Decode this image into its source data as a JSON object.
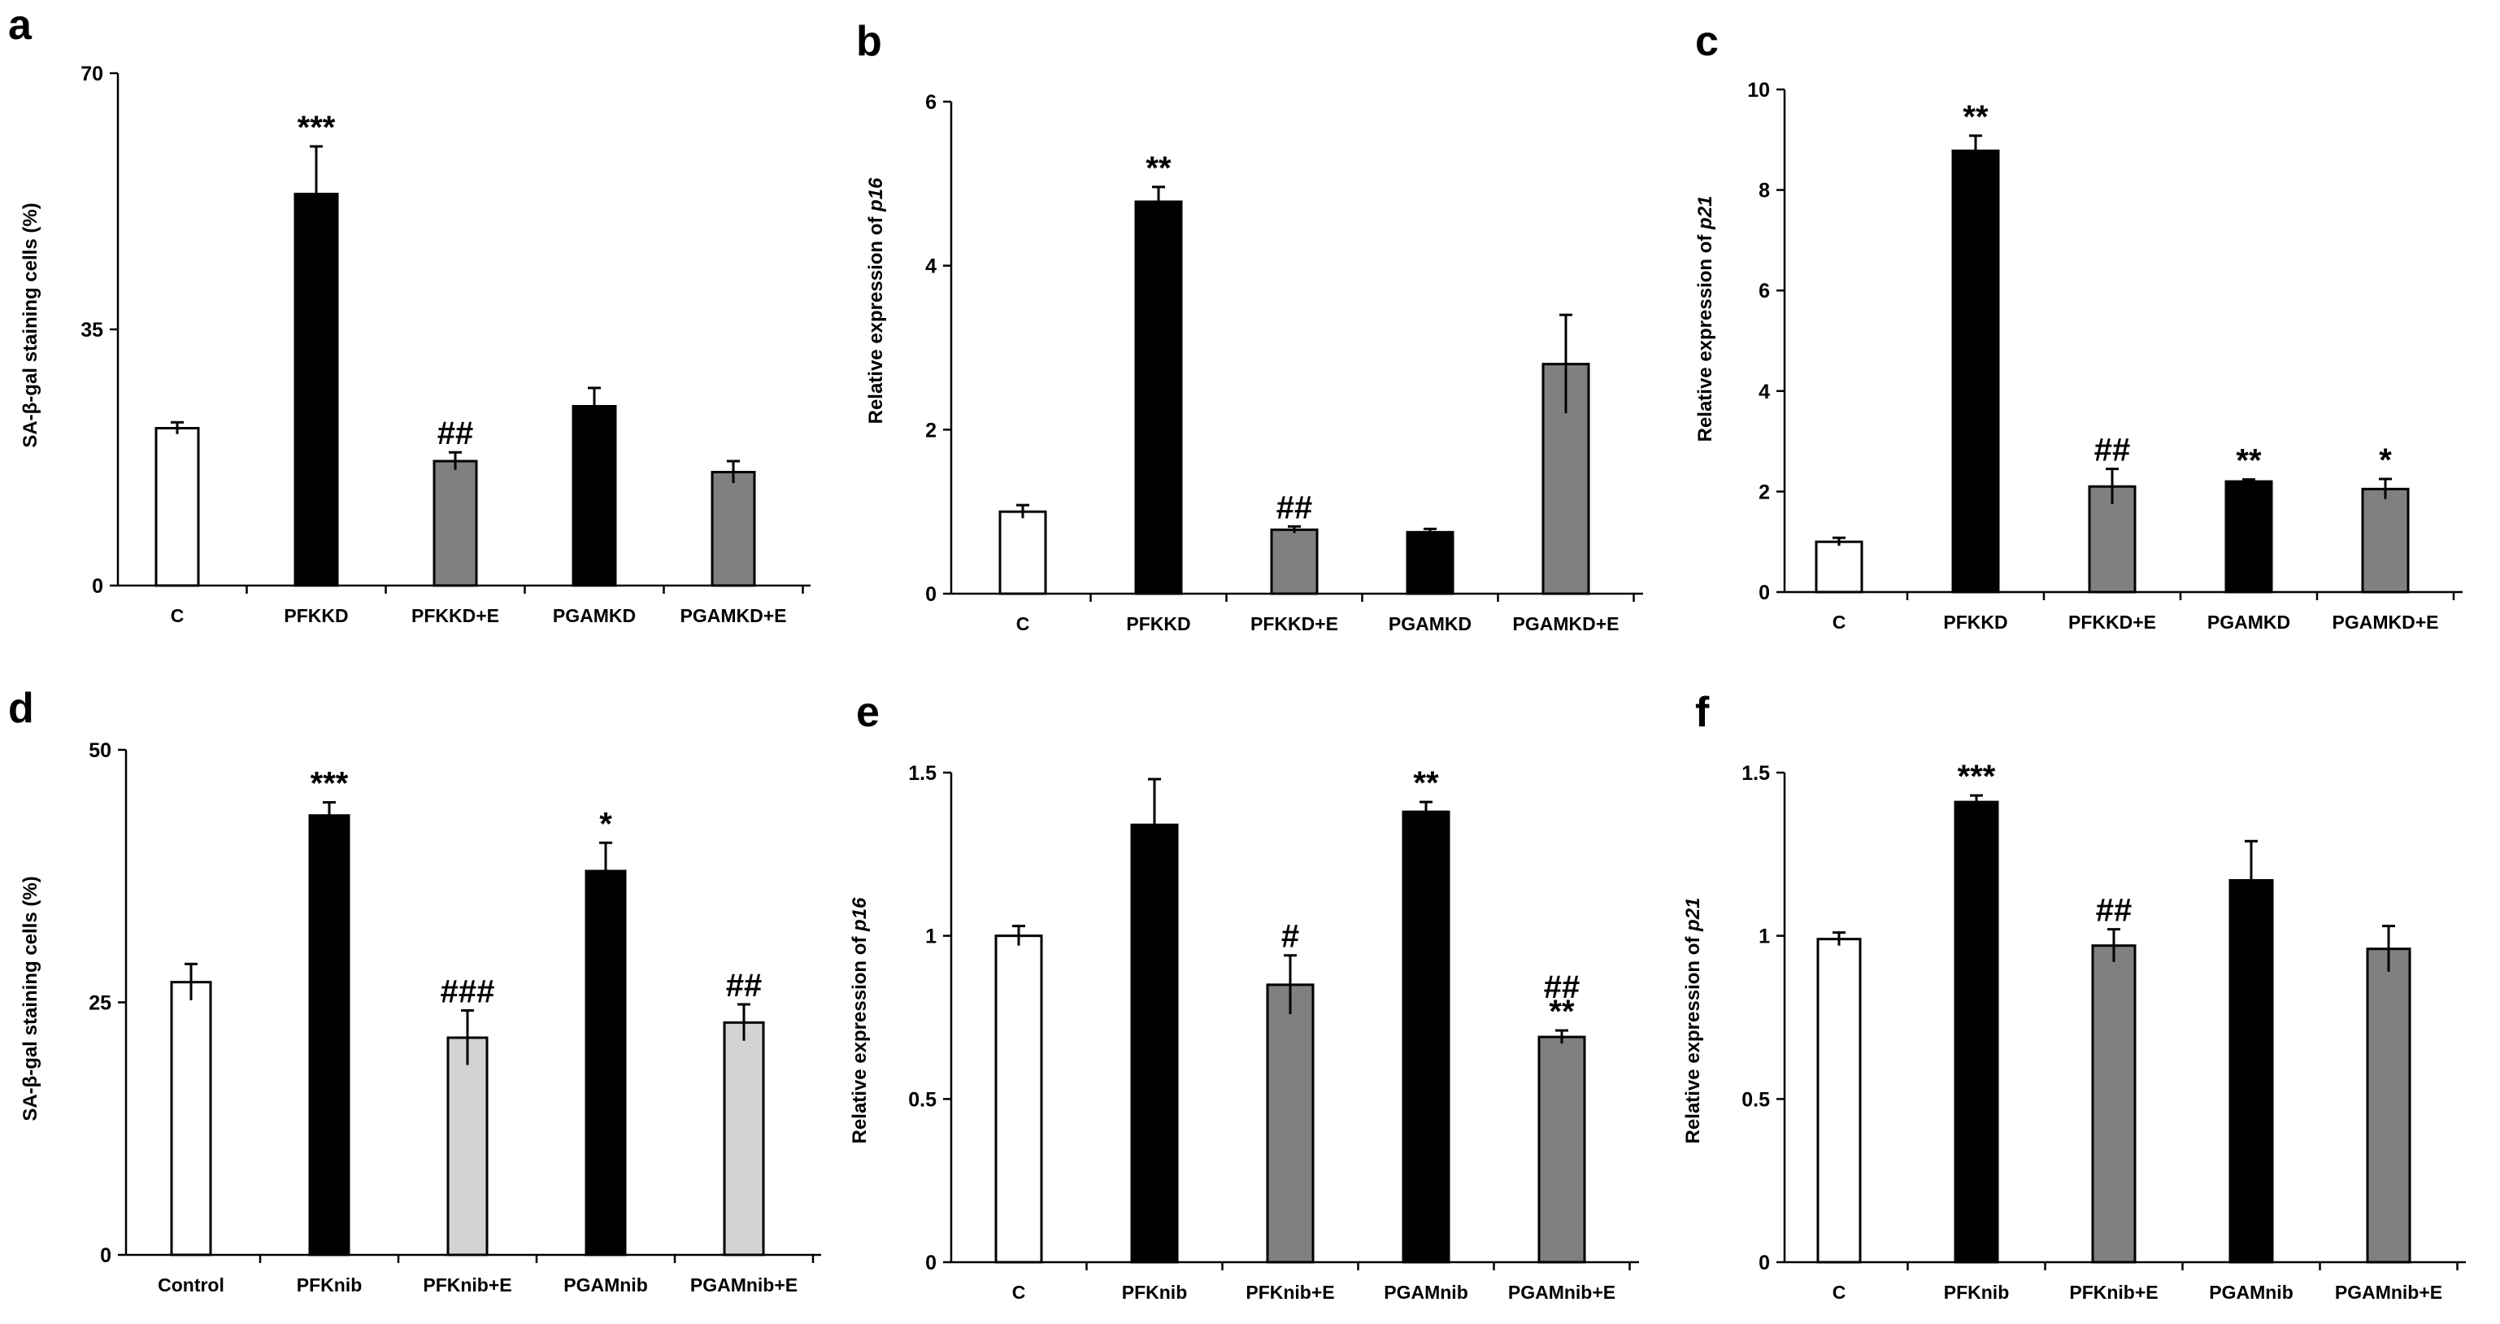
{
  "chart_data": [
    {
      "panel": "a",
      "type": "bar",
      "ylabel": "SA-β-gal staining cells (%)",
      "ylabel_italic": "",
      "ylim": [
        0,
        70
      ],
      "yticks": [
        0,
        35,
        70
      ],
      "ytick_labels": [
        "0",
        "35",
        "70"
      ],
      "categories": [
        "C",
        "PFKKD",
        "PFKKD+E",
        "PGAMKD",
        "PGAMKD+E"
      ],
      "values": [
        21.5,
        53.5,
        17,
        24.5,
        15.5
      ],
      "errors": [
        0.8,
        6.5,
        1.2,
        2.5,
        1.5
      ],
      "fills": [
        "#ffffff",
        "#000000",
        "#808080",
        "#000000",
        "#808080"
      ],
      "sig": [
        "",
        "***",
        "##",
        "",
        ""
      ]
    },
    {
      "panel": "b",
      "type": "bar",
      "ylabel": "Relative expression of ",
      "ylabel_italic": "p16",
      "ylim": [
        0,
        6
      ],
      "yticks": [
        0,
        2,
        4,
        6
      ],
      "ytick_labels": [
        "0",
        "2",
        "4",
        "6"
      ],
      "categories": [
        "C",
        "PFKKD",
        "PFKKD+E",
        "PGAMKD",
        "PGAMKD+E"
      ],
      "values": [
        1.0,
        4.78,
        0.78,
        0.75,
        2.8
      ],
      "errors": [
        0.08,
        0.18,
        0.04,
        0.04,
        0.6
      ],
      "fills": [
        "#ffffff",
        "#000000",
        "#808080",
        "#000000",
        "#808080"
      ],
      "sig": [
        "",
        "**",
        "##",
        "",
        ""
      ]
    },
    {
      "panel": "c",
      "type": "bar",
      "ylabel": "Relative expression of ",
      "ylabel_italic": "p21",
      "ylim": [
        0,
        10
      ],
      "yticks": [
        0,
        2,
        4,
        6,
        8,
        10
      ],
      "ytick_labels": [
        "0",
        "2",
        "4",
        "6",
        "8",
        "10"
      ],
      "categories": [
        "C",
        "PFKKD",
        "PFKKD+E",
        "PGAMKD",
        "PGAMKD+E"
      ],
      "values": [
        1.0,
        8.78,
        2.1,
        2.2,
        2.05
      ],
      "errors": [
        0.08,
        0.3,
        0.35,
        0.04,
        0.2
      ],
      "fills": [
        "#ffffff",
        "#000000",
        "#808080",
        "#000000",
        "#808080"
      ],
      "sig": [
        "",
        "**",
        "##",
        "**",
        "*"
      ]
    },
    {
      "panel": "d",
      "type": "bar",
      "ylabel": "SA-β-gal staining cells (%)",
      "ylabel_italic": "",
      "ylim": [
        0,
        50
      ],
      "yticks": [
        0,
        25,
        50
      ],
      "ytick_labels": [
        "0",
        "25",
        "50"
      ],
      "categories": [
        "Control",
        "PFKnib",
        "PFKnib+E",
        "PGAMnib",
        "PGAMnib+E"
      ],
      "values": [
        27,
        43.5,
        21.5,
        38,
        23
      ],
      "errors": [
        1.8,
        1.3,
        2.7,
        2.8,
        1.8
      ],
      "fills": [
        "#ffffff",
        "#000000",
        "#d3d3d3",
        "#000000",
        "#d3d3d3"
      ],
      "sig": [
        "",
        "***",
        "###",
        "*",
        "##"
      ]
    },
    {
      "panel": "e",
      "type": "bar",
      "ylabel": "Relative expression of ",
      "ylabel_italic": "p16",
      "ylim": [
        0,
        1.5
      ],
      "yticks": [
        0,
        0.5,
        1,
        1.5
      ],
      "ytick_labels": [
        "0",
        "0.5",
        "1",
        "1.5"
      ],
      "categories": [
        "C",
        "PFKnib",
        "PFKnib+E",
        "PGAMnib",
        "PGAMnib+E"
      ],
      "values": [
        1.0,
        1.34,
        0.85,
        1.38,
        0.69
      ],
      "errors": [
        0.03,
        0.14,
        0.09,
        0.03,
        0.02
      ],
      "fills": [
        "#ffffff",
        "#000000",
        "#808080",
        "#000000",
        "#808080"
      ],
      "sig": [
        "",
        "",
        "#",
        "**",
        "##\n**"
      ]
    },
    {
      "panel": "f",
      "type": "bar",
      "ylabel": "Relative expression of ",
      "ylabel_italic": "p21",
      "ylim": [
        0,
        1.5
      ],
      "yticks": [
        0,
        0.5,
        1,
        1.5
      ],
      "ytick_labels": [
        "0",
        "0.5",
        "1",
        "1.5"
      ],
      "categories": [
        "C",
        "PFKnib",
        "PFKnib+E",
        "PGAMnib",
        "PGAMnib+E"
      ],
      "values": [
        0.99,
        1.41,
        0.97,
        1.17,
        0.96
      ],
      "errors": [
        0.02,
        0.02,
        0.05,
        0.12,
        0.07
      ],
      "fills": [
        "#ffffff",
        "#000000",
        "#808080",
        "#000000",
        "#808080"
      ],
      "sig": [
        "",
        "***",
        "##",
        "",
        ""
      ]
    }
  ]
}
